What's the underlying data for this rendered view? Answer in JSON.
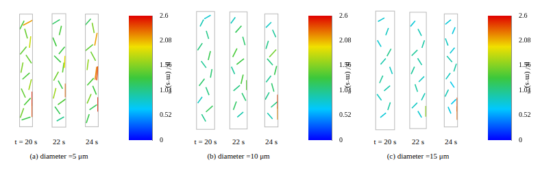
{
  "chart_data": [
    {
      "type": "vector_field",
      "title": "(a) diameter =5 μm",
      "xlim": [
        0,
        1
      ],
      "ylim": [
        0,
        4
      ],
      "tick_labels": false,
      "snapshots": [
        {
          "name": "t = 20 s",
          "vectors": [
            [
              0.2,
              3.6,
              0.6,
              1.2
            ],
            [
              0.5,
              3.3,
              -0.4,
              1.4
            ],
            [
              0.8,
              3.0,
              0.2,
              1.8
            ],
            [
              0.3,
              2.7,
              0.9,
              1.1
            ],
            [
              0.7,
              2.4,
              -0.8,
              1.2
            ],
            [
              0.2,
              2.1,
              0.3,
              1.5
            ],
            [
              0.5,
              1.8,
              1.0,
              0.9
            ],
            [
              0.8,
              1.5,
              0.4,
              1.6
            ],
            [
              0.3,
              1.2,
              -0.6,
              1.3
            ],
            [
              0.6,
              0.9,
              0.9,
              1.0
            ],
            [
              0.2,
              0.5,
              0.5,
              1.4
            ],
            [
              0.5,
              0.3,
              1.2,
              0.4
            ],
            [
              0.95,
              1.0,
              0.0,
              2.5
            ],
            [
              0.95,
              0.6,
              0.0,
              2.4
            ],
            [
              0.7,
              3.7,
              1.9,
              1.0
            ]
          ]
        },
        {
          "name": "22 s",
          "vectors": [
            [
              0.3,
              3.7,
              1.0,
              0.6
            ],
            [
              0.6,
              3.4,
              0.3,
              1.3
            ],
            [
              0.2,
              3.0,
              -0.5,
              1.2
            ],
            [
              0.7,
              2.7,
              0.8,
              1.0
            ],
            [
              0.4,
              2.4,
              -0.9,
              0.9
            ],
            [
              0.8,
              2.1,
              0.2,
              1.4
            ],
            [
              0.3,
              1.8,
              0.7,
              1.3
            ],
            [
              0.6,
              1.5,
              -0.6,
              1.1
            ],
            [
              0.2,
              1.2,
              0.4,
              1.6
            ],
            [
              0.7,
              0.9,
              1.1,
              0.8
            ],
            [
              0.4,
              0.6,
              -0.7,
              1.0
            ],
            [
              0.6,
              0.3,
              0.9,
              0.5
            ],
            [
              0.95,
              1.3,
              0.0,
              2.3
            ],
            [
              0.9,
              2.3,
              0.1,
              1.9
            ]
          ]
        },
        {
          "name": "24 s",
          "vectors": [
            [
              0.2,
              3.7,
              0.8,
              0.9
            ],
            [
              0.6,
              3.5,
              -0.3,
              1.5
            ],
            [
              0.8,
              3.1,
              0.4,
              2.1
            ],
            [
              0.3,
              2.8,
              1.1,
              0.9
            ],
            [
              0.6,
              2.5,
              -0.7,
              1.3
            ],
            [
              0.2,
              2.2,
              0.2,
              1.6
            ],
            [
              0.8,
              1.9,
              0.3,
              2.2
            ],
            [
              0.4,
              1.6,
              0.9,
              1.0
            ],
            [
              0.7,
              1.3,
              -0.5,
              1.2
            ],
            [
              0.3,
              1.0,
              0.6,
              1.4
            ],
            [
              0.6,
              0.7,
              1.0,
              0.7
            ],
            [
              0.2,
              0.3,
              0.4,
              1.2
            ],
            [
              0.95,
              0.8,
              0.0,
              2.5
            ],
            [
              0.9,
              1.9,
              0.2,
              2.4
            ]
          ]
        }
      ],
      "colorbar": {
        "label": "u / (m·s)⁻¹",
        "range": [
          0,
          2.6
        ],
        "ticks": [
          0,
          0.52,
          1.04,
          1.56,
          2.08,
          2.6
        ]
      }
    },
    {
      "type": "vector_field",
      "title": "(b) diameter =10 μm",
      "xlim": [
        0,
        1
      ],
      "ylim": [
        0,
        4
      ],
      "tick_labels": false,
      "snapshots": [
        {
          "name": "t = 20 s",
          "vectors": [
            [
              0.3,
              3.6,
              0.4,
              0.8
            ],
            [
              0.6,
              3.2,
              -0.3,
              1.0
            ],
            [
              0.2,
              2.8,
              0.6,
              0.9
            ],
            [
              0.7,
              2.5,
              0.3,
              1.2
            ],
            [
              0.4,
              2.2,
              -0.6,
              0.8
            ],
            [
              0.8,
              1.9,
              0.2,
              1.1
            ],
            [
              0.3,
              1.6,
              0.7,
              0.9
            ],
            [
              0.6,
              1.3,
              -0.4,
              1.0
            ],
            [
              0.2,
              1.0,
              0.5,
              0.7
            ],
            [
              0.7,
              0.7,
              0.9,
              0.8
            ],
            [
              0.4,
              0.4,
              -0.5,
              0.9
            ],
            [
              0.6,
              3.8,
              0.7,
              0.4
            ]
          ]
        },
        {
          "name": "22 s",
          "vectors": [
            [
              0.2,
              3.7,
              0.5,
              0.7
            ],
            [
              0.5,
              3.4,
              0.8,
              0.9
            ],
            [
              0.8,
              3.0,
              -0.3,
              1.1
            ],
            [
              0.3,
              2.6,
              0.6,
              1.2
            ],
            [
              0.6,
              2.3,
              1.0,
              0.8
            ],
            [
              0.2,
              2.0,
              -0.4,
              0.9
            ],
            [
              0.7,
              1.7,
              0.3,
              1.3
            ],
            [
              0.4,
              1.4,
              0.8,
              0.7
            ],
            [
              0.8,
              1.1,
              -0.5,
              1.0
            ],
            [
              0.3,
              0.8,
              0.4,
              1.1
            ],
            [
              0.6,
              0.5,
              0.7,
              0.6
            ],
            [
              0.95,
              1.5,
              0.0,
              1.4
            ]
          ]
        },
        {
          "name": "24 s",
          "vectors": [
            [
              0.3,
              3.6,
              0.6,
              0.6
            ],
            [
              0.7,
              3.3,
              -0.4,
              0.9
            ],
            [
              0.2,
              2.9,
              0.3,
              1.0
            ],
            [
              0.6,
              2.6,
              1.0,
              1.1
            ],
            [
              0.4,
              2.3,
              -0.7,
              0.8
            ],
            [
              0.8,
              2.0,
              0.3,
              1.2
            ],
            [
              0.3,
              1.7,
              0.6,
              0.8
            ],
            [
              0.6,
              1.4,
              -0.3,
              1.1
            ],
            [
              0.2,
              1.1,
              0.5,
              0.9
            ],
            [
              0.7,
              0.8,
              0.8,
              0.7
            ],
            [
              0.4,
              0.4,
              -0.6,
              0.7
            ],
            [
              0.95,
              0.9,
              0.0,
              2.4
            ],
            [
              0.95,
              0.5,
              0.0,
              2.2
            ]
          ]
        }
      ],
      "colorbar": {
        "label": "u / (m·s)⁻¹",
        "range": [
          0,
          2.6
        ],
        "ticks": [
          0,
          0.52,
          1.04,
          1.56,
          2.08,
          2.6
        ]
      }
    },
    {
      "type": "vector_field",
      "title": "(c) diameter =15 μm",
      "xlim": [
        0,
        1
      ],
      "ylim": [
        0,
        4
      ],
      "tick_labels": false,
      "snapshots": [
        {
          "name": "t = 20 s",
          "vectors": [
            [
              0.3,
              3.7,
              0.7,
              0.4
            ],
            [
              0.6,
              3.3,
              0.3,
              0.8
            ],
            [
              0.2,
              2.9,
              -0.4,
              0.7
            ],
            [
              0.7,
              2.6,
              0.5,
              0.9
            ],
            [
              0.4,
              2.3,
              0.6,
              0.7
            ],
            [
              0.8,
              2.0,
              -0.3,
              0.8
            ],
            [
              0.3,
              1.7,
              0.4,
              0.9
            ],
            [
              0.6,
              1.4,
              0.7,
              0.6
            ],
            [
              0.2,
              1.1,
              -0.5,
              0.7
            ],
            [
              0.7,
              0.8,
              0.3,
              0.9
            ],
            [
              0.4,
              0.5,
              0.6,
              0.5
            ]
          ]
        },
        {
          "name": "22 s",
          "vectors": [
            [
              0.2,
              3.6,
              0.5,
              0.6
            ],
            [
              0.6,
              3.3,
              -0.4,
              0.8
            ],
            [
              0.8,
              2.9,
              0.3,
              0.9
            ],
            [
              0.3,
              2.6,
              0.7,
              0.7
            ],
            [
              0.6,
              2.3,
              -0.5,
              0.8
            ],
            [
              0.2,
              2.0,
              0.4,
              0.9
            ],
            [
              0.7,
              1.7,
              0.6,
              0.6
            ],
            [
              0.4,
              1.4,
              -0.3,
              0.9
            ],
            [
              0.8,
              1.1,
              0.4,
              0.8
            ],
            [
              0.3,
              0.8,
              0.6,
              0.6
            ],
            [
              0.6,
              0.5,
              -0.4,
              0.7
            ],
            [
              0.95,
              0.6,
              0.0,
              1.6
            ]
          ]
        },
        {
          "name": "24 s",
          "vectors": [
            [
              0.3,
              3.7,
              0.6,
              0.5
            ],
            [
              0.7,
              3.4,
              0.3,
              0.7
            ],
            [
              0.2,
              3.0,
              -0.3,
              0.8
            ],
            [
              0.6,
              2.7,
              0.5,
              0.6
            ],
            [
              0.4,
              2.4,
              -0.6,
              0.7
            ],
            [
              0.8,
              2.1,
              0.3,
              0.9
            ],
            [
              0.3,
              1.8,
              0.5,
              0.7
            ],
            [
              0.6,
              1.5,
              -0.4,
              0.6
            ],
            [
              0.2,
              1.2,
              0.4,
              0.8
            ],
            [
              0.7,
              0.9,
              0.5,
              0.5
            ],
            [
              0.4,
              0.6,
              -0.3,
              0.7
            ],
            [
              0.95,
              0.8,
              0.0,
              2.4
            ],
            [
              0.95,
              0.5,
              0.0,
              2.3
            ]
          ]
        }
      ],
      "colorbar": {
        "label": "u / (m·s)⁻¹",
        "range": [
          0,
          2.6
        ],
        "ticks": [
          0,
          0.52,
          1.04,
          1.56,
          2.08,
          2.6
        ]
      }
    }
  ]
}
